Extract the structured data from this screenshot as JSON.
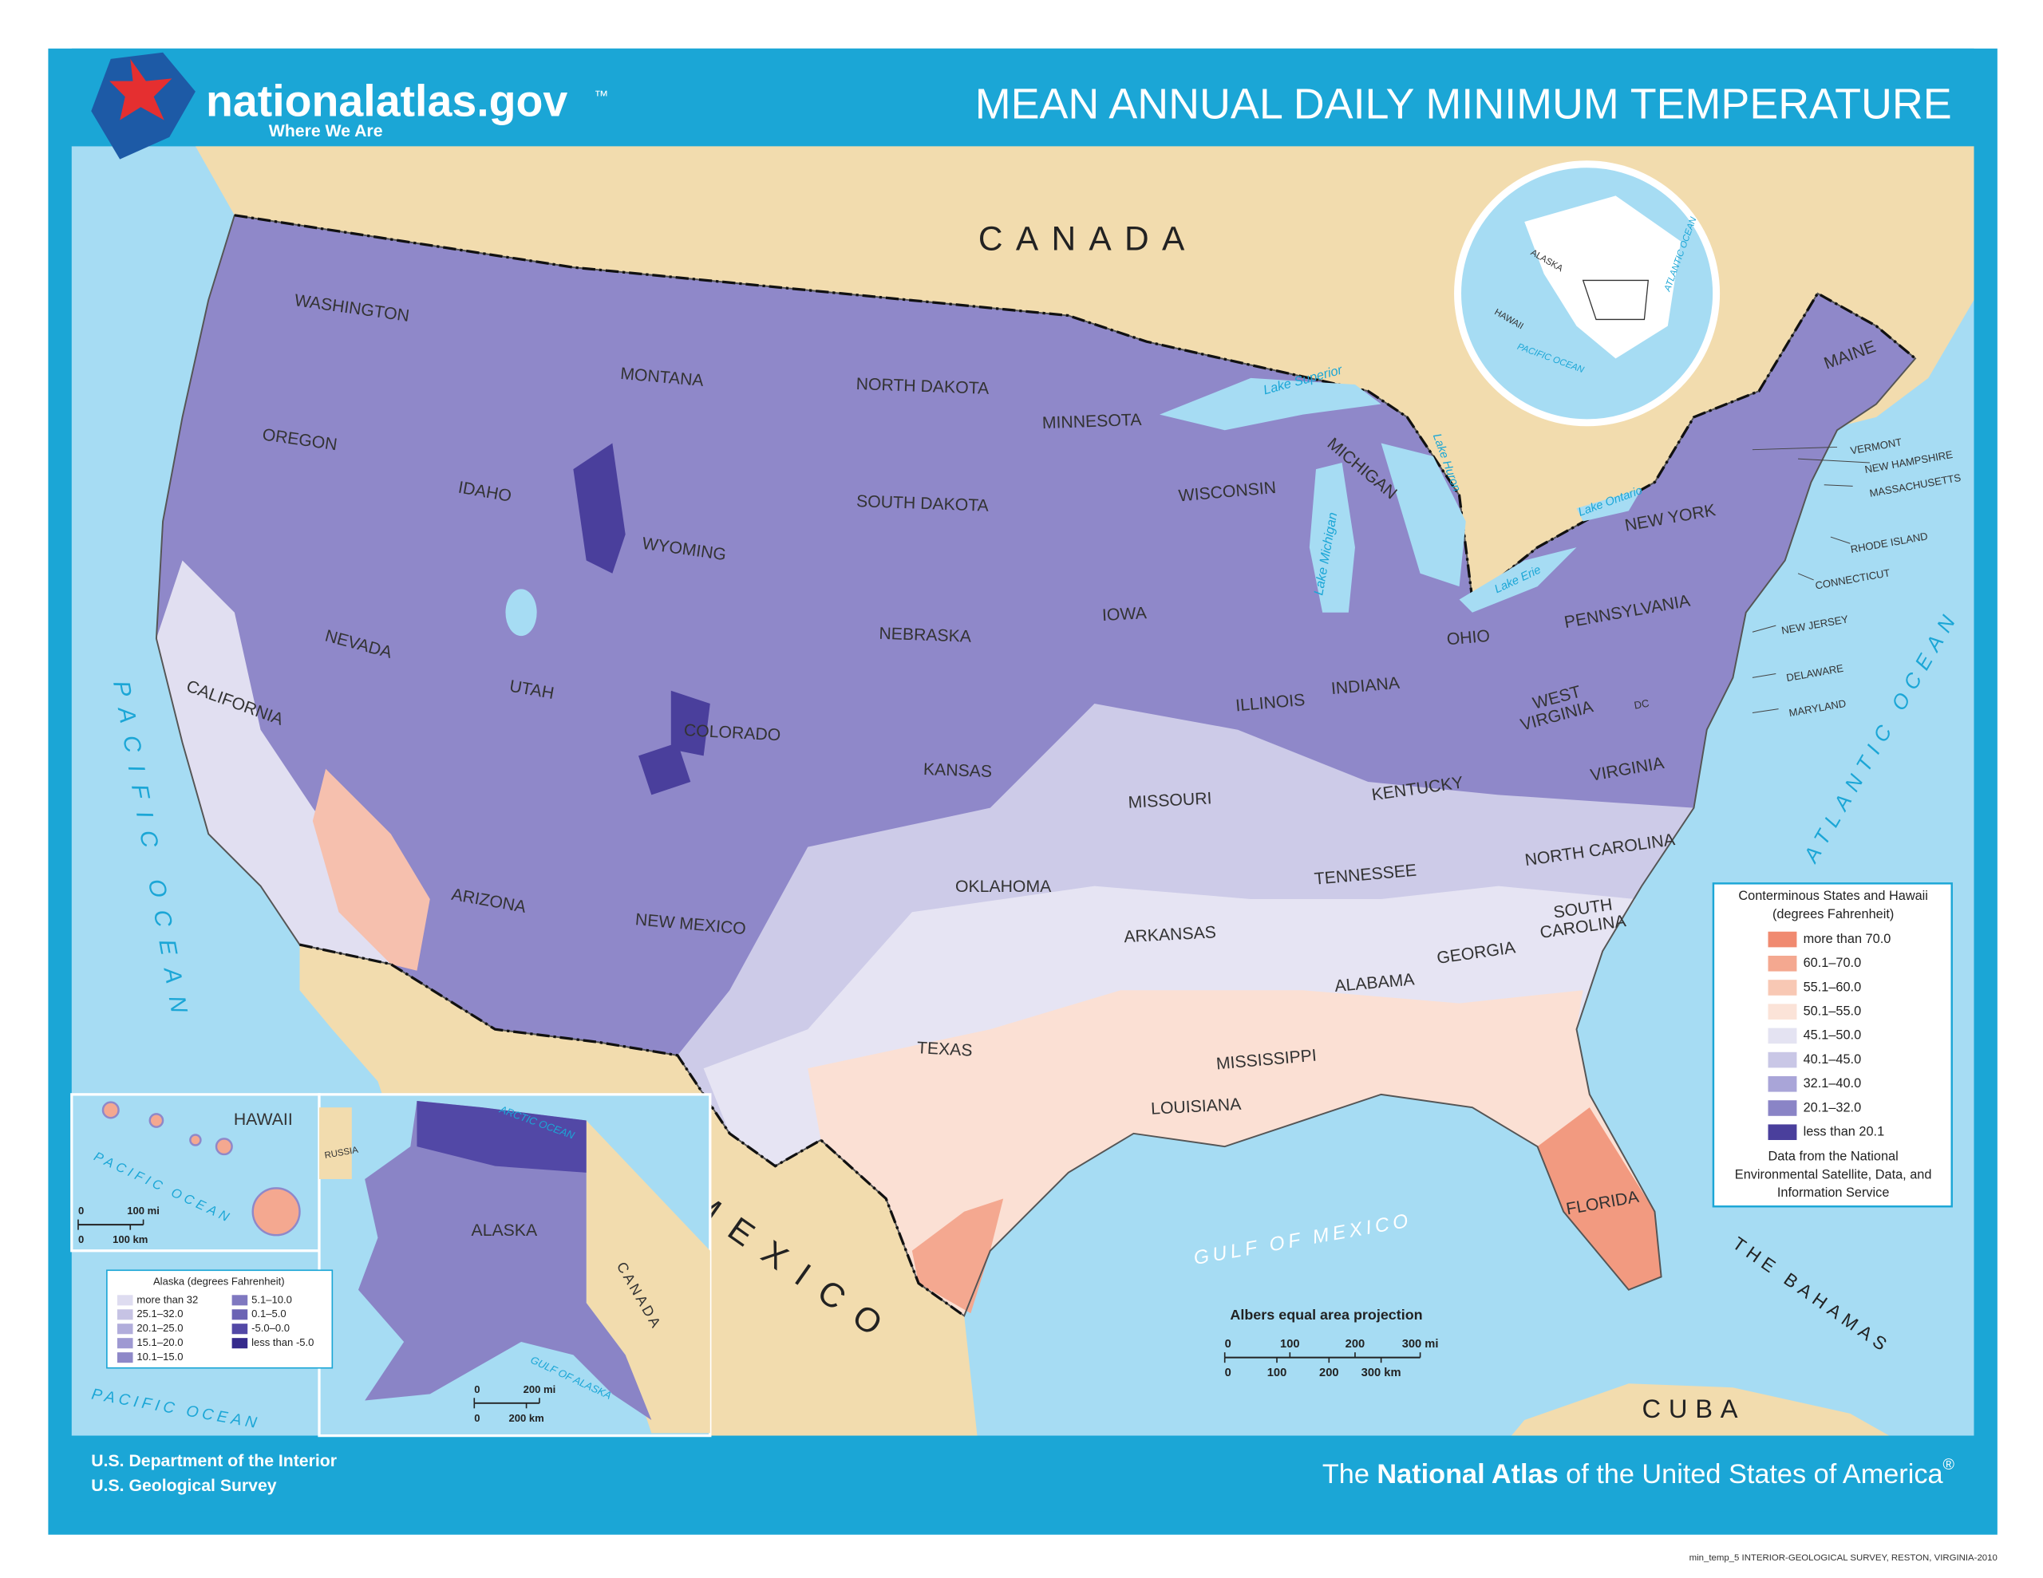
{
  "header": {
    "logo": "nationalatlas.gov",
    "trademark": "™",
    "tagline": "Where We Are",
    "title": "MEAN ANNUAL DAILY MINIMUM TEMPERATURE"
  },
  "map": {
    "countries": [
      "CANADA",
      "MEXICO",
      "CUBA",
      "THE BAHAMAS"
    ],
    "water": [
      "PACIFIC OCEAN",
      "ATLANTIC OCEAN",
      "GULF OF MEXICO",
      "Lake Superior",
      "Lake Michigan",
      "Lake Huron",
      "Lake Erie",
      "Lake Ontario"
    ],
    "states": [
      "WASHINGTON",
      "OREGON",
      "CALIFORNIA",
      "NEVADA",
      "IDAHO",
      "MONTANA",
      "WYOMING",
      "UTAH",
      "COLORADO",
      "ARIZONA",
      "NEW MEXICO",
      "NORTH DAKOTA",
      "SOUTH DAKOTA",
      "NEBRASKA",
      "KANSAS",
      "OKLAHOMA",
      "TEXAS",
      "MINNESOTA",
      "IOWA",
      "MISSOURI",
      "ARKANSAS",
      "LOUISIANA",
      "WISCONSIN",
      "ILLINOIS",
      "MICHIGAN",
      "INDIANA",
      "OHIO",
      "KENTUCKY",
      "TENNESSEE",
      "MISSISSIPPI",
      "ALABAMA",
      "GEORGIA",
      "FLORIDA",
      [
        "SOUTH",
        "CAROLINA"
      ],
      "NORTH CAROLINA",
      "VIRGINIA",
      [
        "WEST",
        "VIRGINIA"
      ],
      "PENNSYLVANIA",
      "NEW YORK",
      "MAINE"
    ],
    "small_states": [
      "VERMONT",
      "NEW HAMPSHIRE",
      "MASSACHUSETTS",
      "RHODE ISLAND",
      "CONNECTICUT",
      "NEW JERSEY",
      "DELAWARE",
      "MARYLAND",
      "DC"
    ],
    "projection": "Albers equal area projection",
    "scale_mi": [
      "0",
      "100",
      "200",
      "300 mi"
    ],
    "scale_km": [
      "0",
      "100",
      "200",
      "300 km"
    ]
  },
  "globe": [
    "ALASKA",
    "HAWAII",
    "PACIFIC OCEAN",
    "ATLANTIC OCEAN"
  ],
  "hawaii": {
    "title": "HAWAII",
    "ocean": "PACIFIC OCEAN",
    "scale_mi": [
      "0",
      "100 mi"
    ],
    "scale_km": [
      "0",
      "100 km"
    ]
  },
  "alaska": {
    "title": "ALASKA",
    "labels": [
      "ARCTIC OCEAN",
      "GULF OF ALASKA",
      "PACIFIC OCEAN",
      "CANADA",
      "RUSSIA"
    ],
    "scale_mi": [
      "0",
      "200 mi"
    ],
    "scale_km": [
      "0",
      "200 km"
    ],
    "legend": {
      "title": "Alaska (degrees Fahrenheit)",
      "items": [
        {
          "label": "more than 32",
          "color": "#dedcf0"
        },
        {
          "label": "25.1–32.0",
          "color": "#c6c3e4"
        },
        {
          "label": "20.1–25.0",
          "color": "#b1addb"
        },
        {
          "label": "15.1–20.0",
          "color": "#9e99d2"
        },
        {
          "label": "10.1–15.0",
          "color": "#8e88c8"
        },
        {
          "label": "5.1–10.0",
          "color": "#7f78c0"
        },
        {
          "label": "0.1–5.0",
          "color": "#6b63b4"
        },
        {
          "label": "-5.0–0.0",
          "color": "#5248a6"
        },
        {
          "label": "less than -5.0",
          "color": "#352a8c"
        }
      ]
    }
  },
  "legend": {
    "title": [
      "Conterminous States and Hawaii",
      "(degrees Fahrenheit)"
    ],
    "items": [
      {
        "label": "more than 70.0",
        "color": "#f08a70"
      },
      {
        "label": "60.1–70.0",
        "color": "#f4a890"
      },
      {
        "label": "55.1–60.0",
        "color": "#f8c8b4"
      },
      {
        "label": "50.1–55.0",
        "color": "#fbe3d8"
      },
      {
        "label": "45.1–50.0",
        "color": "#e4e3f2"
      },
      {
        "label": "40.1–45.0",
        "color": "#c9c7e6"
      },
      {
        "label": "32.1–40.0",
        "color": "#a9a5d8"
      },
      {
        "label": "20.1–32.0",
        "color": "#8a84c6"
      },
      {
        "label": "less than 20.1",
        "color": "#4a3f9c"
      }
    ],
    "source": [
      "Data from the National",
      "Environmental Satellite, Data, and",
      "Information Service"
    ]
  },
  "footer": {
    "agency": [
      "U.S. Department of the Interior",
      "U.S. Geological Survey"
    ],
    "atlas": [
      "The ",
      "National Atlas",
      " of the United States of America",
      "®"
    ],
    "credit": "min_temp_5  INTERIOR-GEOLOGICAL SURVEY, RESTON, VIRGINIA-2010"
  }
}
